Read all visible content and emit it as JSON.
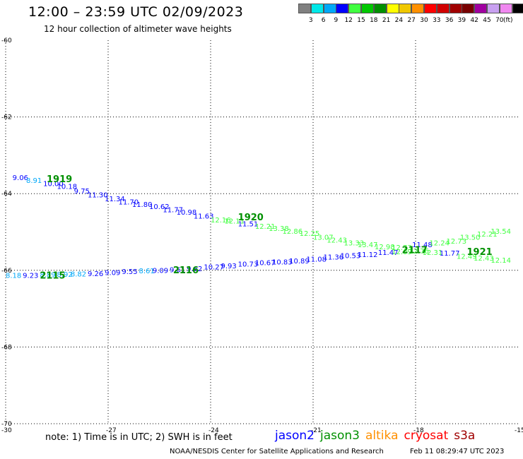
{
  "title": "12:00 – 23:59 UTC 02/09/2023",
  "subtitle": "12 hour collection of altimeter wave heights",
  "legend": {
    "unit": "(ft)",
    "bins": [
      {
        "label": "",
        "color": "#808080"
      },
      {
        "label": "3",
        "color": "#00e8e8"
      },
      {
        "label": "6",
        "color": "#00a8f8"
      },
      {
        "label": "9",
        "color": "#0000ff"
      },
      {
        "label": "12",
        "color": "#40ff40"
      },
      {
        "label": "15",
        "color": "#00c800"
      },
      {
        "label": "18",
        "color": "#009000"
      },
      {
        "label": "21",
        "color": "#ffff00"
      },
      {
        "label": "24",
        "color": "#f0c800"
      },
      {
        "label": "27",
        "color": "#ff9000"
      },
      {
        "label": "30",
        "color": "#ff0000"
      },
      {
        "label": "33",
        "color": "#d00000"
      },
      {
        "label": "36",
        "color": "#a00000"
      },
      {
        "label": "39",
        "color": "#780000"
      },
      {
        "label": "42",
        "color": "#a000a0"
      },
      {
        "label": "45",
        "color": "#c8a0f0"
      },
      {
        "label": "70",
        "color": "#f088f0"
      },
      {
        "label": "",
        "color": "#000000"
      }
    ]
  },
  "map": {
    "lon_ticks": [
      "-30",
      "-27",
      "-24",
      "-21",
      "-18",
      "-15"
    ],
    "lat_ticks": [
      "-60",
      "-62",
      "-64",
      "-66",
      "-68",
      "-70"
    ],
    "track_upper": [
      {
        "t": "9.06",
        "lon": -29.8,
        "lat": -63.65,
        "c": "#0000ff"
      },
      {
        "t": "8.91",
        "lon": -29.4,
        "lat": -63.72,
        "c": "#00a8f8"
      },
      {
        "t": "10.00",
        "lon": -28.9,
        "lat": -63.8,
        "c": "#0000ff"
      },
      {
        "t": "10.18",
        "lon": -28.5,
        "lat": -63.88,
        "c": "#0000ff"
      },
      {
        "t": "9.75",
        "lon": -28.0,
        "lat": -64.0,
        "c": "#0000ff"
      },
      {
        "t": "11.30",
        "lon": -27.6,
        "lat": -64.1,
        "c": "#0000ff"
      },
      {
        "t": "11.34",
        "lon": -27.1,
        "lat": -64.2,
        "c": "#0000ff"
      },
      {
        "t": "11.70",
        "lon": -26.7,
        "lat": -64.28,
        "c": "#0000ff"
      },
      {
        "t": "11.80",
        "lon": -26.3,
        "lat": -64.35,
        "c": "#0000ff"
      },
      {
        "t": "10.62",
        "lon": -25.8,
        "lat": -64.4,
        "c": "#0000ff"
      },
      {
        "t": "11.77",
        "lon": -25.4,
        "lat": -64.48,
        "c": "#0000ff"
      },
      {
        "t": "10.98",
        "lon": -25.0,
        "lat": -64.55,
        "c": "#0000ff"
      },
      {
        "t": "11.63",
        "lon": -24.5,
        "lat": -64.65,
        "c": "#0000ff"
      },
      {
        "t": "12.16",
        "lon": -24.0,
        "lat": -64.75,
        "c": "#40ff40"
      },
      {
        "t": "12.11",
        "lon": -23.6,
        "lat": -64.78,
        "c": "#40ff40"
      },
      {
        "t": "11.51",
        "lon": -23.2,
        "lat": -64.85,
        "c": "#0000ff"
      },
      {
        "t": "12.21",
        "lon": -22.7,
        "lat": -64.92,
        "c": "#40ff40"
      },
      {
        "t": "13.38",
        "lon": -22.3,
        "lat": -64.97,
        "c": "#40ff40"
      },
      {
        "t": "12.86",
        "lon": -21.9,
        "lat": -65.05,
        "c": "#40ff40"
      },
      {
        "t": "12.25",
        "lon": -21.4,
        "lat": -65.1,
        "c": "#40ff40"
      },
      {
        "t": "13.07",
        "lon": -21.0,
        "lat": -65.2,
        "c": "#40ff40"
      },
      {
        "t": "12.43",
        "lon": -20.6,
        "lat": -65.28,
        "c": "#40ff40"
      },
      {
        "t": "13.33",
        "lon": -20.1,
        "lat": -65.35,
        "c": "#40ff40"
      },
      {
        "t": "13.47",
        "lon": -19.7,
        "lat": -65.4,
        "c": "#40ff40"
      },
      {
        "t": "12.98",
        "lon": -19.2,
        "lat": -65.45,
        "c": "#40ff40"
      },
      {
        "t": "12.73",
        "lon": -18.7,
        "lat": -65.47,
        "c": "#40ff40"
      },
      {
        "t": "11.48",
        "lon": -18.1,
        "lat": -65.4,
        "c": "#0000ff"
      },
      {
        "t": "12.24",
        "lon": -17.6,
        "lat": -65.35,
        "c": "#40ff40"
      },
      {
        "t": "12.73",
        "lon": -17.1,
        "lat": -65.3,
        "c": "#40ff40"
      },
      {
        "t": "13.50",
        "lon": -16.7,
        "lat": -65.2,
        "c": "#40ff40"
      },
      {
        "t": "12.21",
        "lon": -16.2,
        "lat": -65.12,
        "c": "#40ff40"
      },
      {
        "t": "13.54",
        "lon": -15.8,
        "lat": -65.05,
        "c": "#40ff40"
      }
    ],
    "track_lower": [
      {
        "t": "8.18",
        "lon": -30.0,
        "lat": -66.2,
        "c": "#00a8f8"
      },
      {
        "t": "9.23",
        "lon": -29.5,
        "lat": -66.2,
        "c": "#0000ff"
      },
      {
        "t": "8.89",
        "lon": -29.0,
        "lat": -66.18,
        "c": "#00a8f8"
      },
      {
        "t": "8.92",
        "lon": -28.5,
        "lat": -66.17,
        "c": "#00a8f8"
      },
      {
        "t": "8.82",
        "lon": -28.1,
        "lat": -66.16,
        "c": "#00a8f8"
      },
      {
        "t": "9.26",
        "lon": -27.6,
        "lat": -66.15,
        "c": "#0000ff"
      },
      {
        "t": "9.09",
        "lon": -27.1,
        "lat": -66.12,
        "c": "#0000ff"
      },
      {
        "t": "9.55",
        "lon": -26.6,
        "lat": -66.1,
        "c": "#0000ff"
      },
      {
        "t": "8.61",
        "lon": -26.1,
        "lat": -66.08,
        "c": "#00a8f8"
      },
      {
        "t": "9.09",
        "lon": -25.7,
        "lat": -66.07,
        "c": "#0000ff"
      },
      {
        "t": "9.61",
        "lon": -25.2,
        "lat": -66.05,
        "c": "#0000ff"
      },
      {
        "t": "9.62",
        "lon": -24.7,
        "lat": -66.02,
        "c": "#0000ff"
      },
      {
        "t": "10.27",
        "lon": -24.2,
        "lat": -65.98,
        "c": "#0000ff"
      },
      {
        "t": "9.93",
        "lon": -23.7,
        "lat": -65.95,
        "c": "#0000ff"
      },
      {
        "t": "10.73",
        "lon": -23.2,
        "lat": -65.9,
        "c": "#0000ff"
      },
      {
        "t": "10.67",
        "lon": -22.7,
        "lat": -65.87,
        "c": "#0000ff"
      },
      {
        "t": "10.83",
        "lon": -22.2,
        "lat": -65.85,
        "c": "#0000ff"
      },
      {
        "t": "10.89",
        "lon": -21.7,
        "lat": -65.82,
        "c": "#0000ff"
      },
      {
        "t": "11.08",
        "lon": -21.2,
        "lat": -65.77,
        "c": "#0000ff"
      },
      {
        "t": "11.36",
        "lon": -20.7,
        "lat": -65.72,
        "c": "#0000ff"
      },
      {
        "t": "10.53",
        "lon": -20.2,
        "lat": -65.68,
        "c": "#0000ff"
      },
      {
        "t": "11.12",
        "lon": -19.7,
        "lat": -65.65,
        "c": "#0000ff"
      },
      {
        "t": "11.47",
        "lon": -19.1,
        "lat": -65.6,
        "c": "#0000ff"
      },
      {
        "t": "12.09",
        "lon": -18.7,
        "lat": -65.58,
        "c": "#40ff40"
      },
      {
        "t": "12.76",
        "lon": -18.2,
        "lat": -65.56,
        "c": "#40ff40"
      },
      {
        "t": "12.31",
        "lon": -17.8,
        "lat": -65.6,
        "c": "#40ff40"
      },
      {
        "t": "11.77",
        "lon": -17.3,
        "lat": -65.62,
        "c": "#0000ff"
      },
      {
        "t": "12.49",
        "lon": -16.8,
        "lat": -65.7,
        "c": "#40ff40"
      },
      {
        "t": "12.43",
        "lon": -16.3,
        "lat": -65.75,
        "c": "#40ff40"
      },
      {
        "t": "12.14",
        "lon": -15.8,
        "lat": -65.8,
        "c": "#40ff40"
      }
    ],
    "time_labels": [
      {
        "t": "1919",
        "lon": -28.8,
        "lat": -63.7,
        "c": "#009000"
      },
      {
        "t": "1920",
        "lon": -23.2,
        "lat": -64.7,
        "c": "#009000"
      },
      {
        "t": "2117",
        "lon": -18.4,
        "lat": -65.55,
        "c": "#009000"
      },
      {
        "t": "1921",
        "lon": -16.5,
        "lat": -65.6,
        "c": "#009000"
      },
      {
        "t": "2115",
        "lon": -29.0,
        "lat": -66.22,
        "c": "#009000"
      },
      {
        "t": "2116",
        "lon": -25.1,
        "lat": -66.08,
        "c": "#009000"
      }
    ]
  },
  "note": "note:  1) Time is in UTC; 2) SWH is in feet",
  "satellites": [
    {
      "name": "jason2",
      "color": "#0000ff"
    },
    {
      "name": "jason3",
      "color": "#009000"
    },
    {
      "name": "altika",
      "color": "#ff9000"
    },
    {
      "name": "cryosat",
      "color": "#ff0000"
    },
    {
      "name": "s3a",
      "color": "#a00000"
    }
  ],
  "footer": {
    "center": "NOAA/NESDIS Center for Satellite Applications and Research",
    "timestamp": "Feb 11 08:29:47 UTC 2023"
  }
}
